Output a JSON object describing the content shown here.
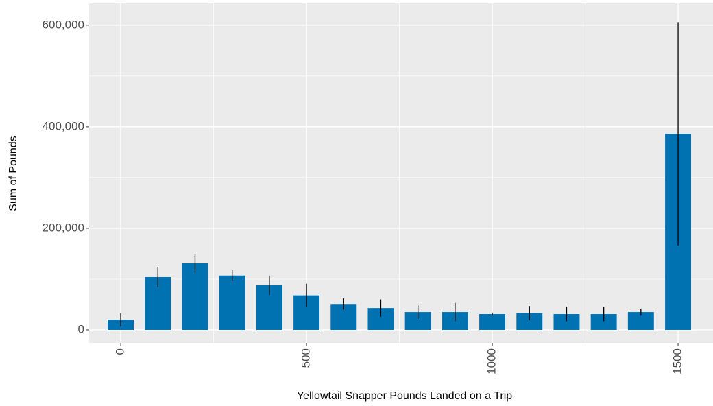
{
  "chart_data": {
    "type": "bar",
    "x_label": "Yellowtail Snapper Pounds Landed on a Trip",
    "y_label": "Sum of Pounds",
    "x": [
      0,
      100,
      200,
      300,
      400,
      500,
      600,
      700,
      800,
      900,
      1000,
      1100,
      1200,
      1300,
      1400,
      1500
    ],
    "values": [
      20000,
      104000,
      131000,
      107000,
      88000,
      68000,
      51000,
      43000,
      35000,
      35000,
      31000,
      33000,
      31000,
      31000,
      35000,
      386000
    ],
    "errors": [
      13000,
      20000,
      18000,
      11000,
      19000,
      23000,
      11000,
      17000,
      13000,
      18000,
      3000,
      14000,
      14000,
      14000,
      7000,
      220000
    ],
    "bar_width": 70,
    "color": "#0072b2",
    "error_color": "#000000",
    "xlim": [
      -85,
      1594
    ],
    "ylim": [
      -25700,
      643000
    ],
    "xticks": [
      0,
      500,
      1000,
      1500
    ],
    "yticks": [
      0,
      {
        "value": 200000,
        "label": "200,000"
      },
      {
        "value": 400000,
        "label": "400,000"
      },
      {
        "value": 600000,
        "label": "600,000"
      }
    ],
    "grid": true,
    "minor_grid": true
  }
}
